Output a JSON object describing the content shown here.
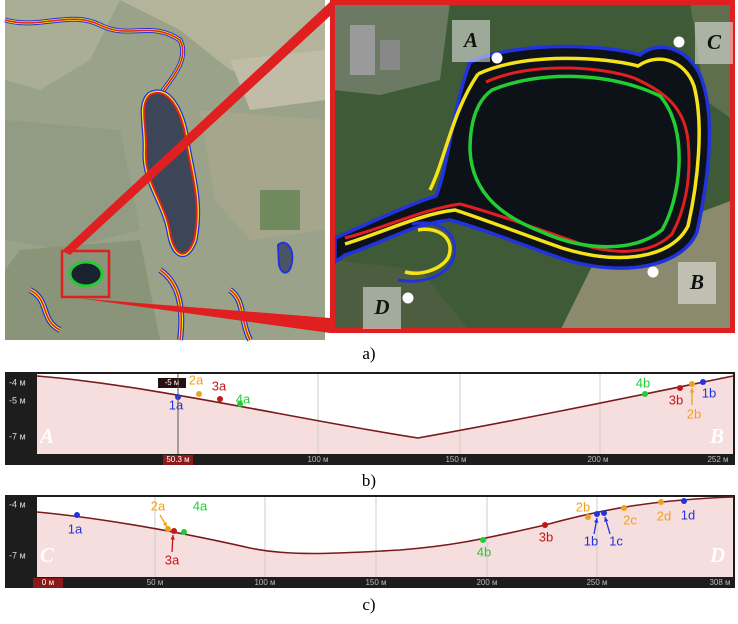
{
  "panel_a": {
    "caption": "a)",
    "labels": [
      "A",
      "B",
      "C",
      "D"
    ]
  },
  "panel_b": {
    "caption": "b)",
    "start": "A",
    "end": "B",
    "y_labels": [
      "-4 м",
      "-5 м",
      "-7 м"
    ],
    "cursor_depth": "-5 м",
    "x_labels": [
      "50.3 м",
      "100 м",
      "150 м",
      "200 м",
      "252 м"
    ],
    "points": [
      "1a",
      "2a",
      "3a",
      "4a",
      "4b",
      "3b",
      "1b",
      "2b"
    ]
  },
  "panel_c": {
    "caption": "c)",
    "start": "C",
    "end": "D",
    "y_labels": [
      "-4 м",
      "-7 м"
    ],
    "x_labels": [
      "0 м",
      "50 м",
      "100 м",
      "150 м",
      "200 м",
      "250 м",
      "308 м"
    ],
    "points": [
      "1a",
      "2a",
      "3a",
      "4a",
      "4b",
      "3b",
      "2b",
      "1b",
      "1c",
      "2c",
      "2d",
      "1d"
    ]
  }
}
